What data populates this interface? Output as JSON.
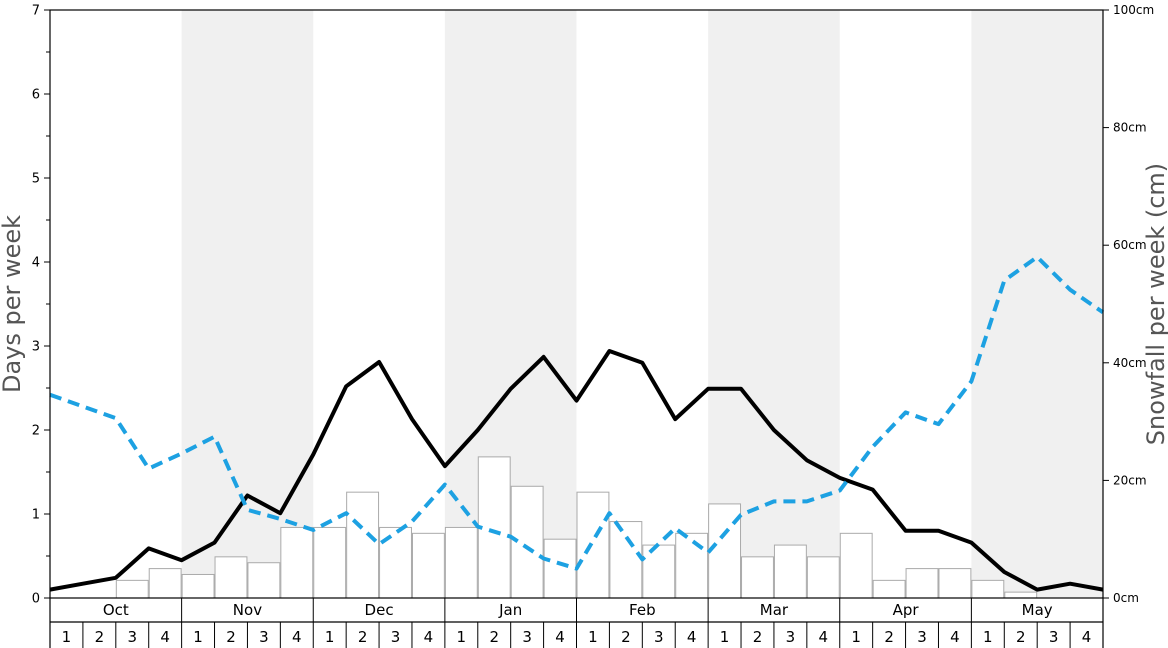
{
  "chart_data": {
    "type": "bar",
    "ylabel": "Days per week",
    "y2label": "Snowfall per week (cm)",
    "ylim": [
      0,
      7
    ],
    "y2lim": [
      0,
      100
    ],
    "y_ticks": [
      "0",
      "1",
      "2",
      "3",
      "4",
      "5",
      "6",
      "7"
    ],
    "y2_ticks": [
      "0cm",
      "20cm",
      "40cm",
      "60cm",
      "80cm",
      "100cm"
    ],
    "months": [
      "Oct",
      "Nov",
      "Dec",
      "Jan",
      "Feb",
      "Mar",
      "Apr",
      "May"
    ],
    "weeks": [
      "1",
      "2",
      "3",
      "4"
    ],
    "shaded_months": [
      "Nov",
      "Jan",
      "Mar",
      "May"
    ],
    "series": [
      {
        "kind": "bar",
        "axis": "right",
        "color": "#ffffff",
        "values": [
          0,
          0,
          3,
          5,
          4,
          7,
          6,
          12,
          12,
          18,
          12,
          11,
          12,
          24,
          19,
          10,
          18,
          13,
          9,
          11,
          16,
          7,
          9,
          7,
          11,
          3,
          5,
          5,
          3,
          1,
          0,
          0
        ]
      },
      {
        "kind": "line",
        "axis": "left",
        "color": "#000000",
        "values": [
          0.1,
          0.17,
          0.24,
          0.59,
          0.45,
          0.66,
          1.22,
          1.01,
          1.71,
          2.52,
          2.81,
          2.13,
          1.57,
          2.0,
          2.49,
          2.87,
          2.35,
          2.94,
          2.8,
          2.13,
          2.49,
          2.49,
          2.0,
          1.64,
          1.43,
          1.29,
          0.8,
          0.8,
          0.66,
          0.31,
          0.1,
          0.17,
          0.1
        ]
      },
      {
        "kind": "dashed-line",
        "axis": "left",
        "color": "#1da1e2",
        "values": [
          2.42,
          2.28,
          2.14,
          1.54,
          1.72,
          1.92,
          1.05,
          0.94,
          0.81,
          1.01,
          0.64,
          0.91,
          1.35,
          0.85,
          0.73,
          0.47,
          0.35,
          1.01,
          0.46,
          0.83,
          0.54,
          0.99,
          1.15,
          1.15,
          1.28,
          1.8,
          2.21,
          2.07,
          2.58,
          3.78,
          4.06,
          3.67,
          3.4
        ]
      }
    ]
  }
}
